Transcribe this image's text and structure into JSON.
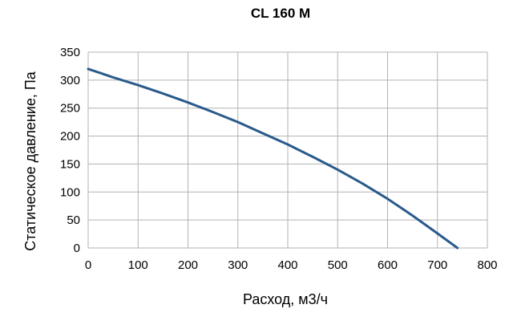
{
  "chart_data": {
    "type": "line",
    "title": "CL 160 M",
    "xlabel": "Расход, м3/ч",
    "ylabel": "Статическое давление, Па",
    "xlim": [
      0,
      800
    ],
    "ylim": [
      0,
      350
    ],
    "x_ticks": [
      "0",
      "100",
      "200",
      "300",
      "400",
      "500",
      "600",
      "700",
      "800"
    ],
    "y_ticks": [
      "0",
      "50",
      "100",
      "150",
      "200",
      "250",
      "300",
      "350"
    ],
    "grid": true,
    "series": [
      {
        "x": [
          0,
          50,
          100,
          150,
          200,
          250,
          300,
          350,
          400,
          450,
          500,
          550,
          600,
          650,
          700,
          740
        ],
        "values": [
          320,
          305,
          291,
          276,
          260,
          243,
          225,
          205,
          185,
          163,
          140,
          115,
          88,
          58,
          26,
          0
        ],
        "color": "#2a5a8c"
      }
    ]
  }
}
